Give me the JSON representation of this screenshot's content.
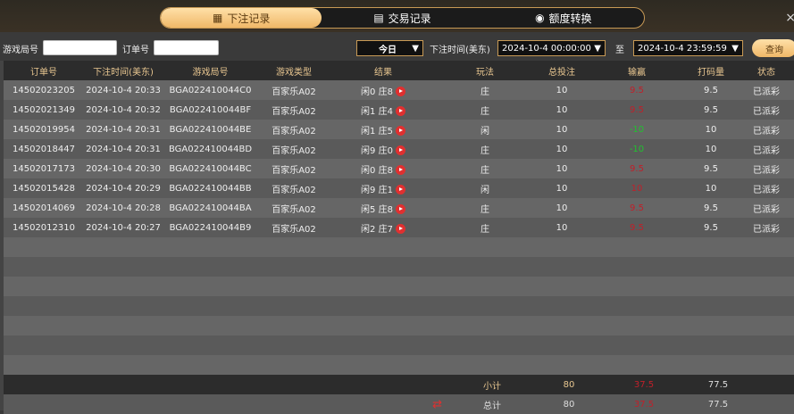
{
  "tabs": [
    {
      "label": "下注记录",
      "icon": "calendar-icon",
      "active": true
    },
    {
      "label": "交易记录",
      "icon": "document-icon"
    },
    {
      "label": "额度转换",
      "icon": "coins-icon"
    }
  ],
  "close": "×",
  "filters": {
    "game_round_label": "游戏局号",
    "game_round_value": "",
    "order_label": "订单号",
    "order_value": "",
    "period": "今日",
    "time_label": "下注时间(美东)",
    "start": "2024-10-4 00:00:00",
    "to_label": "至",
    "end": "2024-10-4 23:59:59",
    "query": "查询"
  },
  "columns": [
    "订单号",
    "下注时间(美东)",
    "游戏局号",
    "游戏类型",
    "结果",
    "玩法",
    "总投注",
    "输赢",
    "打码量",
    "状态"
  ],
  "colors": {
    "win": "#c0202a",
    "loss": "#22c030",
    "accent": "#f0b868"
  },
  "rows": [
    [
      "14502023205",
      "2024-10-4 20:33",
      "BGA022410044C0",
      "百家乐A02",
      "闲0 庄8",
      "庄",
      "10",
      "9.5",
      "9.5",
      "已派彩"
    ],
    [
      "14502021349",
      "2024-10-4 20:32",
      "BGA022410044BF",
      "百家乐A02",
      "闲1 庄4",
      "庄",
      "10",
      "9.5",
      "9.5",
      "已派彩"
    ],
    [
      "14502019954",
      "2024-10-4 20:31",
      "BGA022410044BE",
      "百家乐A02",
      "闲1 庄5",
      "闲",
      "10",
      "-10",
      "10",
      "已派彩"
    ],
    [
      "14502018447",
      "2024-10-4 20:31",
      "BGA022410044BD",
      "百家乐A02",
      "闲9 庄0",
      "庄",
      "10",
      "-10",
      "10",
      "已派彩"
    ],
    [
      "14502017173",
      "2024-10-4 20:30",
      "BGA022410044BC",
      "百家乐A02",
      "闲0 庄8",
      "庄",
      "10",
      "9.5",
      "9.5",
      "已派彩"
    ],
    [
      "14502015428",
      "2024-10-4 20:29",
      "BGA022410044BB",
      "百家乐A02",
      "闲9 庄1",
      "闲",
      "10",
      "10",
      "10",
      "已派彩"
    ],
    [
      "14502014069",
      "2024-10-4 20:28",
      "BGA022410044BA",
      "百家乐A02",
      "闲5 庄8",
      "庄",
      "10",
      "9.5",
      "9.5",
      "已派彩"
    ],
    [
      "14502012310",
      "2024-10-4 20:27",
      "BGA022410044B9",
      "百家乐A02",
      "闲2 庄7",
      "庄",
      "10",
      "9.5",
      "9.5",
      "已派彩"
    ]
  ],
  "subtotal": {
    "label": "小计",
    "bet": "80",
    "win": "37.5",
    "turnover": "77.5"
  },
  "total": {
    "label": "总计",
    "bet": "80",
    "win": "37.5",
    "turnover": "77.5"
  }
}
